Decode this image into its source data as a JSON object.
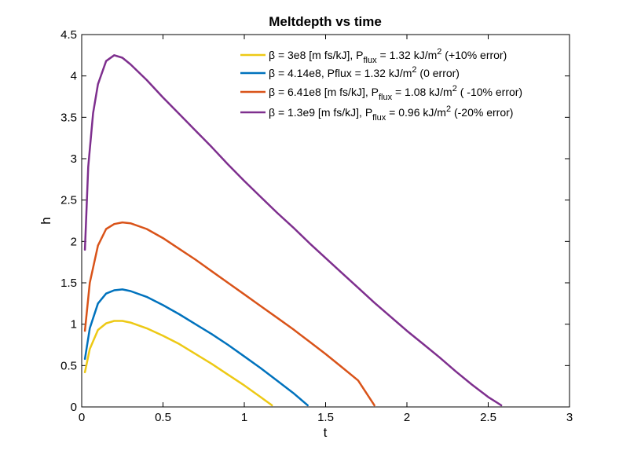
{
  "chart_data": {
    "type": "line",
    "title": "Meltdepth vs time",
    "xlabel": "t",
    "ylabel": "h",
    "xlim": [
      0,
      3
    ],
    "ylim": [
      0,
      4.5
    ],
    "xticks": [
      0,
      0.5,
      1,
      1.5,
      2,
      2.5,
      3
    ],
    "xtick_labels": [
      "0",
      "0.5",
      "1",
      "1.5",
      "2",
      "2.5",
      "3"
    ],
    "yticks": [
      0,
      0.5,
      1,
      1.5,
      2,
      2.5,
      3,
      3.5,
      4,
      4.5
    ],
    "ytick_labels": [
      "0",
      "0.5",
      "1",
      "1.5",
      "2",
      "2.5",
      "3",
      "3.5",
      "4",
      "4.5"
    ],
    "grid": false,
    "legend_position": "top-right",
    "series": [
      {
        "name": "β = 3e8 [m fs/kJ], Pflux = 1.32 kJ/m2 (+10% error)",
        "legend": {
          "pre": "β = 3e8 [m fs/kJ], P",
          "sub": "flux",
          "mid": " = 1.32 kJ/m",
          "sup": "2",
          "post": " (+10% error)"
        },
        "color": "#EDC915",
        "x": [
          0.02,
          0.05,
          0.1,
          0.15,
          0.2,
          0.25,
          0.3,
          0.4,
          0.5,
          0.6,
          0.7,
          0.8,
          0.9,
          1.0,
          1.1,
          1.17
        ],
        "y": [
          0.42,
          0.7,
          0.93,
          1.01,
          1.04,
          1.04,
          1.02,
          0.95,
          0.86,
          0.76,
          0.64,
          0.52,
          0.39,
          0.26,
          0.12,
          0.02
        ]
      },
      {
        "name": "β = 4.14e8, Pflux = 1.32 kJ/m2 (0 error)",
        "legend": {
          "pre": "β = 4.14e8, Pflux = 1.32 kJ/m",
          "sup": "2",
          "post": " (0 error)"
        },
        "color": "#0072BD",
        "x": [
          0.02,
          0.05,
          0.1,
          0.15,
          0.2,
          0.25,
          0.3,
          0.4,
          0.5,
          0.6,
          0.7,
          0.8,
          0.9,
          1.0,
          1.1,
          1.2,
          1.3,
          1.39
        ],
        "y": [
          0.58,
          0.95,
          1.25,
          1.37,
          1.41,
          1.42,
          1.4,
          1.33,
          1.23,
          1.12,
          1.0,
          0.88,
          0.75,
          0.61,
          0.47,
          0.32,
          0.17,
          0.02
        ]
      },
      {
        "name": "β = 6.41e8 [m fs/kJ], Pflux = 1.08 kJ/m2 ( -10% error)",
        "legend": {
          "pre": "β = 6.41e8 [m fs/kJ], P",
          "sub": "flux",
          "mid": " = 1.08 kJ/m",
          "sup": "2",
          "post": " ( -10% error)"
        },
        "color": "#D95319",
        "x": [
          0.02,
          0.05,
          0.1,
          0.15,
          0.2,
          0.25,
          0.3,
          0.4,
          0.5,
          0.6,
          0.7,
          0.8,
          0.9,
          1.0,
          1.1,
          1.2,
          1.3,
          1.4,
          1.5,
          1.6,
          1.7,
          1.8
        ],
        "y": [
          0.92,
          1.5,
          1.95,
          2.15,
          2.21,
          2.23,
          2.22,
          2.15,
          2.04,
          1.91,
          1.78,
          1.64,
          1.5,
          1.36,
          1.22,
          1.08,
          0.94,
          0.79,
          0.64,
          0.48,
          0.32,
          0.02
        ]
      },
      {
        "name": "β = 1.3e9 [m fs/kJ], Pflux = 0.96 kJ/m2 (-20% error)",
        "legend": {
          "pre": "β = 1.3e9 [m fs/kJ], P",
          "sub": "flux",
          "mid": " = 0.96 kJ/m",
          "sup": "2",
          "post": " (-20% error)"
        },
        "color": "#7E2F8E",
        "x": [
          0.02,
          0.04,
          0.07,
          0.1,
          0.15,
          0.2,
          0.25,
          0.3,
          0.4,
          0.5,
          0.6,
          0.7,
          0.8,
          0.9,
          1.0,
          1.1,
          1.2,
          1.3,
          1.4,
          1.5,
          1.6,
          1.7,
          1.8,
          1.9,
          2.0,
          2.1,
          2.2,
          2.3,
          2.4,
          2.5,
          2.58
        ],
        "y": [
          1.9,
          2.9,
          3.55,
          3.9,
          4.18,
          4.25,
          4.22,
          4.14,
          3.95,
          3.74,
          3.54,
          3.34,
          3.14,
          2.93,
          2.73,
          2.54,
          2.35,
          2.17,
          1.98,
          1.8,
          1.62,
          1.44,
          1.26,
          1.09,
          0.92,
          0.76,
          0.6,
          0.43,
          0.27,
          0.12,
          0.02
        ]
      }
    ]
  }
}
